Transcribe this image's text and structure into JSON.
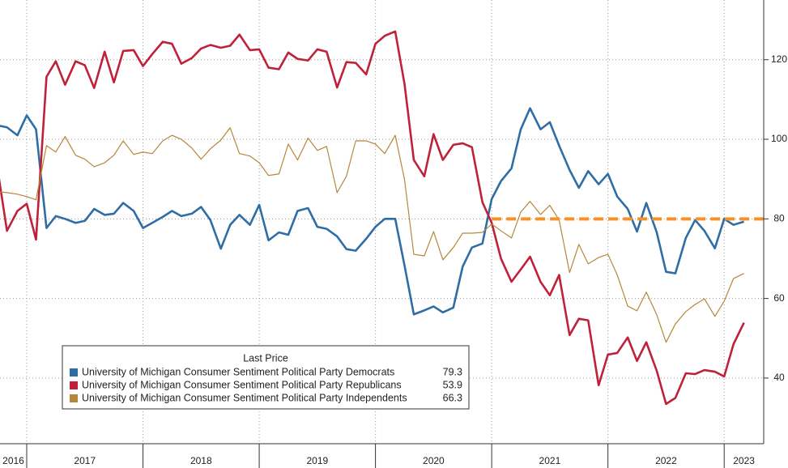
{
  "chart_data": {
    "type": "line",
    "legend_title": "Last Price",
    "x": [
      2016.75,
      2016.83,
      2016.92,
      2017.0,
      2017.08,
      2017.17,
      2017.25,
      2017.33,
      2017.42,
      2017.5,
      2017.58,
      2017.67,
      2017.75,
      2017.83,
      2017.92,
      2018.0,
      2018.08,
      2018.17,
      2018.25,
      2018.33,
      2018.42,
      2018.5,
      2018.58,
      2018.67,
      2018.75,
      2018.83,
      2018.92,
      2019.0,
      2019.08,
      2019.17,
      2019.25,
      2019.33,
      2019.42,
      2019.5,
      2019.58,
      2019.67,
      2019.75,
      2019.83,
      2019.92,
      2020.0,
      2020.08,
      2020.17,
      2020.25,
      2020.33,
      2020.42,
      2020.5,
      2020.58,
      2020.67,
      2020.75,
      2020.83,
      2020.92,
      2021.0,
      2021.08,
      2021.17,
      2021.25,
      2021.33,
      2021.42,
      2021.5,
      2021.58,
      2021.67,
      2021.75,
      2021.83,
      2021.92,
      2022.0,
      2022.08,
      2022.17,
      2022.25,
      2022.33,
      2022.42,
      2022.5,
      2022.58,
      2022.67,
      2022.75,
      2022.83,
      2022.92,
      2023.0,
      2023.08,
      2023.17
    ],
    "series": [
      {
        "name": "University of Michigan Consumer Sentiment Political Party Democrats",
        "color": "#2f6da5",
        "values": [
          103.5,
          103,
          101,
          106,
          102.5,
          77.7,
          80.7,
          80,
          79,
          79.5,
          82.5,
          81,
          81.3,
          84,
          82,
          77.7,
          79,
          80.5,
          82,
          80.7,
          81.3,
          83,
          79.7,
          72.5,
          78.5,
          81,
          78.5,
          83.5,
          74.6,
          76.6,
          76,
          82,
          82.7,
          78,
          77.5,
          75.6,
          72.4,
          72,
          75,
          78,
          80,
          80,
          68.3,
          56,
          57,
          58,
          56.5,
          57.7,
          68,
          72.8,
          73.8,
          85,
          89.5,
          92.7,
          102.5,
          107.8,
          102.5,
          104.3,
          98.4,
          92.3,
          87.8,
          92,
          88.7,
          91.3,
          85.6,
          82.5,
          76.8,
          84,
          76.6,
          66.7,
          66.3,
          75.2,
          79.7,
          77,
          72.6,
          80,
          78.5,
          79.3
        ]
      },
      {
        "name": "University of Michigan Consumer Sentiment Political Party Republicans",
        "color": "#c0213a",
        "values": [
          92.3,
          77,
          82,
          83.8,
          74.8,
          115.7,
          119.6,
          113.7,
          119.6,
          118.6,
          112.9,
          122,
          114.3,
          122.2,
          122.4,
          118.4,
          121.4,
          124.5,
          124,
          119,
          120.4,
          122.8,
          123.7,
          123,
          123.5,
          126.3,
          122.4,
          122.6,
          118,
          117.6,
          121.8,
          120.2,
          119.8,
          122.6,
          122,
          113,
          119.4,
          119.2,
          116.3,
          124,
          126,
          127.1,
          113.9,
          94.8,
          90.7,
          101.3,
          94.8,
          98.6,
          99,
          98,
          84.2,
          79,
          70,
          64.2,
          67.3,
          70.5,
          64.2,
          60.8,
          65.9,
          50.8,
          54.9,
          54.5,
          38.2,
          45.9,
          46.3,
          50.2,
          44.3,
          49,
          41.8,
          33.5,
          35,
          41.2,
          41,
          42,
          41.6,
          40.4,
          48.5,
          53.9
        ]
      },
      {
        "name": "University of Michigan Consumer Sentiment Political Party Independents",
        "color": "#b5873a",
        "values": [
          86.8,
          86.6,
          86.2,
          85.6,
          84.8,
          98.4,
          96.8,
          100.7,
          96,
          95,
          93.1,
          94.1,
          96,
          99.6,
          96.2,
          96.8,
          96.4,
          99.6,
          101,
          100,
          97.8,
          95,
          97.6,
          99.8,
          102.9,
          96.4,
          95.8,
          94.1,
          90.9,
          91.3,
          98.8,
          94.8,
          100.3,
          97.2,
          98.2,
          86.6,
          90.7,
          99.6,
          99.6,
          98.8,
          96.4,
          101,
          89.9,
          71.1,
          70.7,
          76.8,
          69.7,
          72.8,
          76.4,
          76.4,
          76.6,
          78.7,
          77,
          75.2,
          81.7,
          84.4,
          81.1,
          83.4,
          79.7,
          66.5,
          73.6,
          68.7,
          70.3,
          71.1,
          65.9,
          58.1,
          56.9,
          61.6,
          55.9,
          49,
          53.6,
          56.7,
          58.5,
          59.9,
          55.5,
          59.3,
          65,
          66.3
        ]
      }
    ],
    "reference_line": {
      "value": 80,
      "from": 2021,
      "color": "#f5912a"
    },
    "xlim": [
      2016.77,
      2023.34
    ],
    "xticks": [
      2017,
      2018,
      2019,
      2020,
      2021,
      2022,
      2023
    ],
    "year_labels": [
      2016,
      2017,
      2018,
      2019,
      2020,
      2021,
      2022,
      2023
    ],
    "ylim": [
      23.5,
      135
    ],
    "yticks": [
      40,
      60,
      80,
      100,
      120
    ],
    "grid": true
  }
}
